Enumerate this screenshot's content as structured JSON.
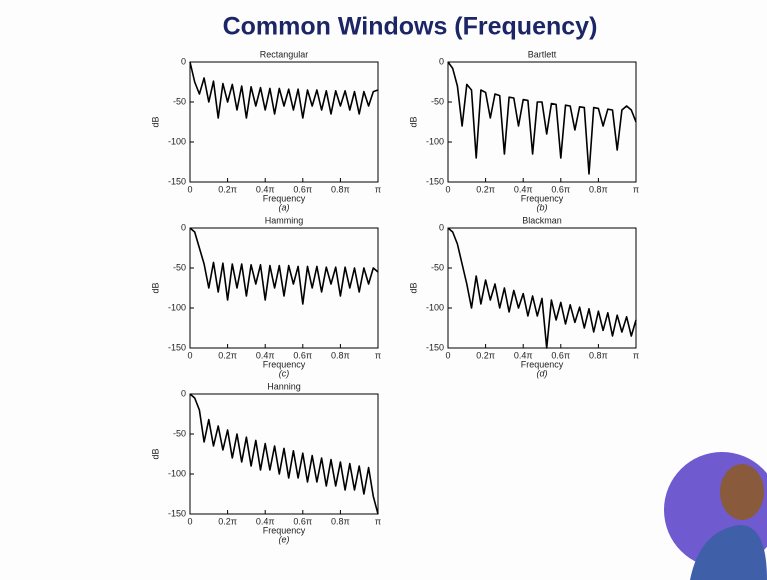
{
  "title": "Common Windows (Frequency)",
  "chart_data": [
    {
      "type": "line",
      "title": "Rectangular",
      "xlabel": "Frequency",
      "caption": "(a)",
      "ylabel": "dB",
      "color": "#000000",
      "xlim": [
        0,
        1
      ],
      "xticks": [
        0,
        {
          "value": 0.2,
          "label": "0.2π"
        },
        {
          "value": 0.4,
          "label": "0.4π"
        },
        {
          "value": 0.6,
          "label": "0.6π"
        },
        {
          "value": 0.8,
          "label": "0.8π"
        },
        {
          "value": 1,
          "label": "π"
        }
      ],
      "ylim": [
        -150,
        0
      ],
      "yticks": [
        -150,
        -100,
        -50,
        0
      ],
      "x": [
        0,
        0.025,
        0.05,
        0.075,
        0.1,
        0.125,
        0.15,
        0.175,
        0.2,
        0.225,
        0.25,
        0.275,
        0.3,
        0.325,
        0.35,
        0.375,
        0.4,
        0.425,
        0.45,
        0.475,
        0.5,
        0.525,
        0.55,
        0.575,
        0.6,
        0.625,
        0.65,
        0.675,
        0.7,
        0.725,
        0.75,
        0.775,
        0.8,
        0.825,
        0.85,
        0.875,
        0.9,
        0.925,
        0.95,
        0.975,
        1
      ],
      "values": [
        0,
        -25,
        -40,
        -20,
        -50,
        -24,
        -70,
        -27,
        -50,
        -28,
        -60,
        -30,
        -70,
        -31,
        -55,
        -32,
        -60,
        -33,
        -65,
        -33,
        -55,
        -34,
        -60,
        -34,
        -70,
        -35,
        -55,
        -35,
        -60,
        -36,
        -65,
        -36,
        -55,
        -36,
        -60,
        -37,
        -65,
        -37,
        -55,
        -37,
        -35
      ]
    },
    {
      "type": "line",
      "title": "Bartlett",
      "xlabel": "Frequency",
      "caption": "(b)",
      "ylabel": "dB",
      "color": "#000000",
      "xlim": [
        0,
        1
      ],
      "xticks": [
        0,
        {
          "value": 0.2,
          "label": "0.2π"
        },
        {
          "value": 0.4,
          "label": "0.4π"
        },
        {
          "value": 0.6,
          "label": "0.6π"
        },
        {
          "value": 0.8,
          "label": "0.8π"
        },
        {
          "value": 1,
          "label": "π"
        }
      ],
      "ylim": [
        -150,
        0
      ],
      "yticks": [
        -150,
        -100,
        -50,
        0
      ],
      "x": [
        0,
        0.025,
        0.05,
        0.075,
        0.1,
        0.125,
        0.15,
        0.175,
        0.2,
        0.225,
        0.25,
        0.275,
        0.3,
        0.325,
        0.35,
        0.375,
        0.4,
        0.425,
        0.45,
        0.475,
        0.5,
        0.525,
        0.55,
        0.575,
        0.6,
        0.625,
        0.65,
        0.675,
        0.7,
        0.725,
        0.75,
        0.775,
        0.8,
        0.825,
        0.85,
        0.875,
        0.9,
        0.925,
        0.95,
        0.975,
        1
      ],
      "values": [
        0,
        -8,
        -30,
        -80,
        -28,
        -35,
        -120,
        -35,
        -38,
        -70,
        -40,
        -42,
        -115,
        -44,
        -45,
        -80,
        -47,
        -48,
        -115,
        -50,
        -50,
        -90,
        -52,
        -53,
        -120,
        -54,
        -55,
        -85,
        -56,
        -57,
        -140,
        -57,
        -58,
        -80,
        -59,
        -60,
        -110,
        -60,
        -55,
        -60,
        -75
      ]
    },
    {
      "type": "line",
      "title": "Hamming",
      "xlabel": "Frequency",
      "caption": "(c)",
      "ylabel": "dB",
      "color": "#000000",
      "xlim": [
        0,
        1
      ],
      "xticks": [
        0,
        {
          "value": 0.2,
          "label": "0.2π"
        },
        {
          "value": 0.4,
          "label": "0.4π"
        },
        {
          "value": 0.6,
          "label": "0.6π"
        },
        {
          "value": 0.8,
          "label": "0.8π"
        },
        {
          "value": 1,
          "label": "π"
        }
      ],
      "ylim": [
        -150,
        0
      ],
      "yticks": [
        -150,
        -100,
        -50,
        0
      ],
      "x": [
        0,
        0.025,
        0.05,
        0.075,
        0.1,
        0.125,
        0.15,
        0.175,
        0.2,
        0.225,
        0.25,
        0.275,
        0.3,
        0.325,
        0.35,
        0.375,
        0.4,
        0.425,
        0.45,
        0.475,
        0.5,
        0.525,
        0.55,
        0.575,
        0.6,
        0.625,
        0.65,
        0.675,
        0.7,
        0.725,
        0.75,
        0.775,
        0.8,
        0.825,
        0.85,
        0.875,
        0.9,
        0.925,
        0.95,
        0.975,
        1
      ],
      "values": [
        0,
        -5,
        -25,
        -45,
        -75,
        -43,
        -80,
        -44,
        -90,
        -45,
        -75,
        -45,
        -85,
        -46,
        -70,
        -46,
        -90,
        -47,
        -75,
        -47,
        -85,
        -47,
        -70,
        -48,
        -95,
        -48,
        -75,
        -48,
        -80,
        -49,
        -70,
        -49,
        -85,
        -49,
        -75,
        -50,
        -80,
        -50,
        -70,
        -50,
        -55
      ]
    },
    {
      "type": "line",
      "title": "Blackman",
      "xlabel": "Frequency",
      "caption": "(d)",
      "ylabel": "dB",
      "color": "#000000",
      "xlim": [
        0,
        1
      ],
      "xticks": [
        0,
        {
          "value": 0.2,
          "label": "0.2π"
        },
        {
          "value": 0.4,
          "label": "0.4π"
        },
        {
          "value": 0.6,
          "label": "0.6π"
        },
        {
          "value": 0.8,
          "label": "0.8π"
        },
        {
          "value": 1,
          "label": "π"
        }
      ],
      "ylim": [
        -150,
        0
      ],
      "yticks": [
        -150,
        -100,
        -50,
        0
      ],
      "x": [
        0,
        0.025,
        0.05,
        0.075,
        0.1,
        0.125,
        0.15,
        0.175,
        0.2,
        0.225,
        0.25,
        0.275,
        0.3,
        0.325,
        0.35,
        0.375,
        0.4,
        0.425,
        0.45,
        0.475,
        0.5,
        0.525,
        0.55,
        0.575,
        0.6,
        0.625,
        0.65,
        0.675,
        0.7,
        0.725,
        0.75,
        0.775,
        0.8,
        0.825,
        0.85,
        0.875,
        0.9,
        0.925,
        0.95,
        0.975,
        1
      ],
      "values": [
        0,
        -5,
        -20,
        -45,
        -70,
        -100,
        -60,
        -95,
        -65,
        -90,
        -70,
        -100,
        -75,
        -105,
        -78,
        -100,
        -82,
        -110,
        -85,
        -110,
        -88,
        -150,
        -90,
        -115,
        -93,
        -120,
        -96,
        -118,
        -99,
        -125,
        -101,
        -130,
        -104,
        -128,
        -106,
        -135,
        -109,
        -130,
        -111,
        -135,
        -115
      ]
    },
    {
      "type": "line",
      "title": "Hanning",
      "xlabel": "Frequency",
      "caption": "(e)",
      "ylabel": "dB",
      "color": "#000000",
      "xlim": [
        0,
        1
      ],
      "xticks": [
        0,
        {
          "value": 0.2,
          "label": "0.2π"
        },
        {
          "value": 0.4,
          "label": "0.4π"
        },
        {
          "value": 0.6,
          "label": "0.6π"
        },
        {
          "value": 0.8,
          "label": "0.8π"
        },
        {
          "value": 1,
          "label": "π"
        }
      ],
      "ylim": [
        -150,
        0
      ],
      "yticks": [
        -150,
        -100,
        -50,
        0
      ],
      "x": [
        0,
        0.025,
        0.05,
        0.075,
        0.1,
        0.125,
        0.15,
        0.175,
        0.2,
        0.225,
        0.25,
        0.275,
        0.3,
        0.325,
        0.35,
        0.375,
        0.4,
        0.425,
        0.45,
        0.475,
        0.5,
        0.525,
        0.55,
        0.575,
        0.6,
        0.625,
        0.65,
        0.675,
        0.7,
        0.725,
        0.75,
        0.775,
        0.8,
        0.825,
        0.85,
        0.875,
        0.9,
        0.925,
        0.95,
        0.975,
        1
      ],
      "values": [
        0,
        -5,
        -20,
        -60,
        -32,
        -65,
        -40,
        -70,
        -45,
        -80,
        -50,
        -85,
        -54,
        -90,
        -58,
        -95,
        -62,
        -95,
        -65,
        -100,
        -68,
        -105,
        -71,
        -105,
        -74,
        -110,
        -77,
        -110,
        -80,
        -115,
        -82,
        -115,
        -85,
        -120,
        -87,
        -120,
        -90,
        -125,
        -92,
        -128,
        -150
      ]
    }
  ]
}
